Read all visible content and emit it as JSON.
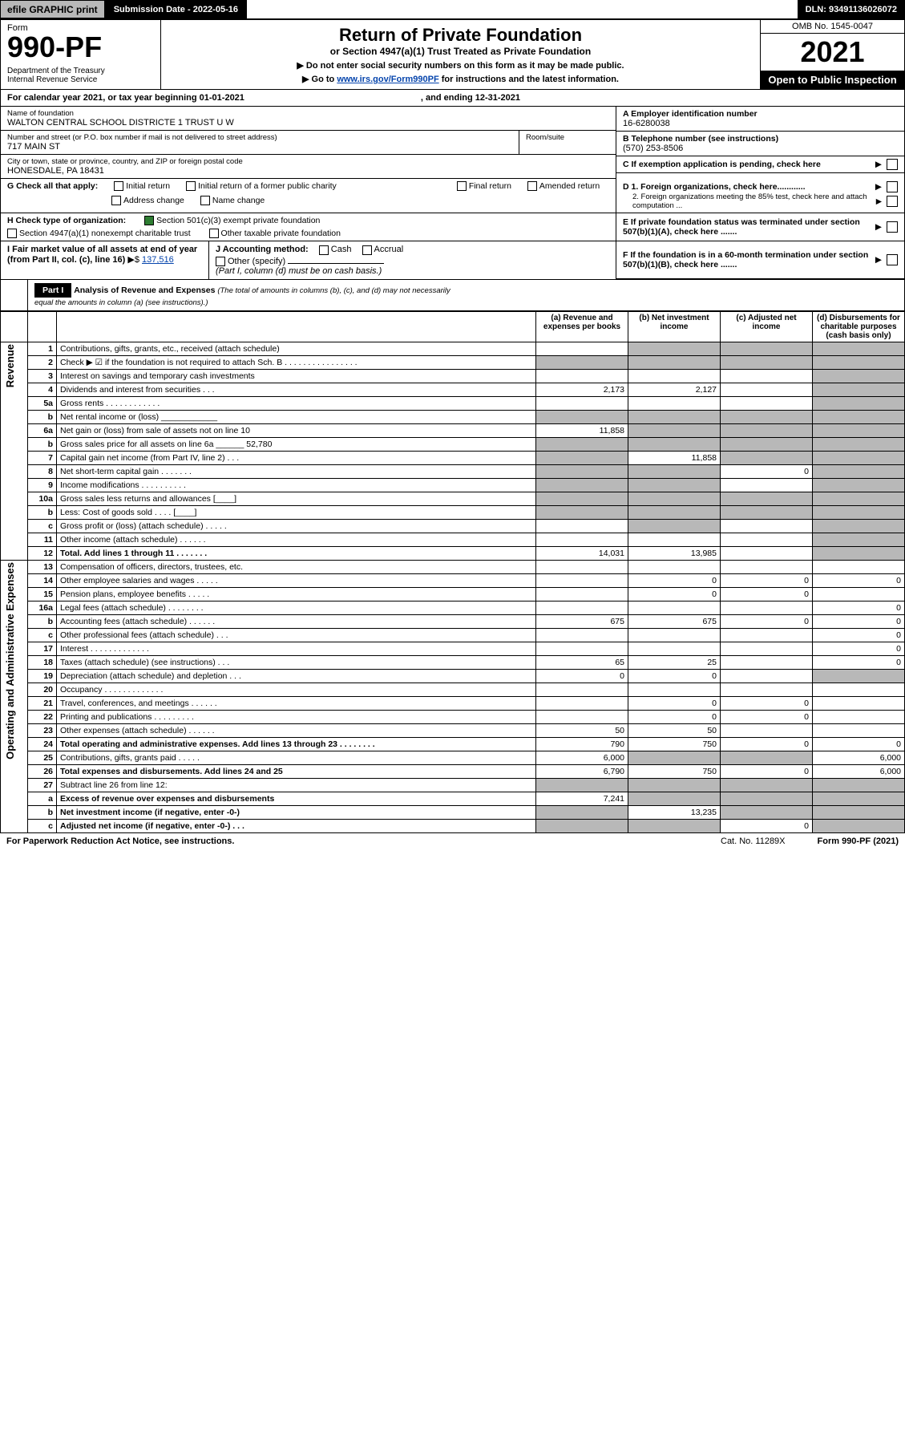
{
  "topbar": {
    "efile": "efile GRAPHIC print",
    "submission": "Submission Date - 2022-05-16",
    "dln": "DLN: 93491136026072"
  },
  "header": {
    "formword": "Form",
    "formno": "990-PF",
    "dept": "Department of the Treasury\nInternal Revenue Service",
    "title": "Return of Private Foundation",
    "sub": "or Section 4947(a)(1) Trust Treated as Private Foundation",
    "note1": "▶ Do not enter social security numbers on this form as it may be made public.",
    "note2_pre": "▶ Go to ",
    "note2_link": "www.irs.gov/Form990PF",
    "note2_post": " for instructions and the latest information.",
    "omb": "OMB No. 1545-0047",
    "year": "2021",
    "open": "Open to Public Inspection"
  },
  "calendar": {
    "text": "For calendar year 2021, or tax year beginning 01-01-2021",
    "ending": ", and ending 12-31-2021"
  },
  "info": {
    "name_label": "Name of foundation",
    "name": "WALTON CENTRAL SCHOOL DISTRICTE 1 TRUST U W",
    "addr_label": "Number and street (or P.O. box number if mail is not delivered to street address)",
    "addr": "717 MAIN ST",
    "room_label": "Room/suite",
    "city_label": "City or town, state or province, country, and ZIP or foreign postal code",
    "city": "HONESDALE, PA  18431",
    "ein_label": "A Employer identification number",
    "ein": "16-6280038",
    "tel_label": "B Telephone number (see instructions)",
    "tel": "(570) 253-8506",
    "c_label": "C If exemption application is pending, check here",
    "d1": "D 1. Foreign organizations, check here............",
    "d2": "2. Foreign organizations meeting the 85% test, check here and attach computation ...",
    "e": "E If private foundation status was terminated under section 507(b)(1)(A), check here .......",
    "f": "F If the foundation is in a 60-month termination under section 507(b)(1)(B), check here .......",
    "g_label": "G Check all that apply:",
    "g_opts": [
      "Initial return",
      "Initial return of a former public charity",
      "Final return",
      "Amended return",
      "Address change",
      "Name change"
    ],
    "h_label": "H Check type of organization:",
    "h1": "Section 501(c)(3) exempt private foundation",
    "h2": "Section 4947(a)(1) nonexempt charitable trust",
    "h3": "Other taxable private foundation",
    "i_label": "I Fair market value of all assets at end of year (from Part II, col. (c), line 16)",
    "i_val": "137,516",
    "j_label": "J Accounting method:",
    "j_cash": "Cash",
    "j_accrual": "Accrual",
    "j_other": "Other (specify)",
    "j_note": "(Part I, column (d) must be on cash basis.)"
  },
  "part1": {
    "label": "Part I",
    "title": "Analysis of Revenue and Expenses",
    "title_note": "(The total of amounts in columns (b), (c), and (d) may not necessarily equal the amounts in column (a) (see instructions).)",
    "col_a": "(a) Revenue and expenses per books",
    "col_b": "(b) Net investment income",
    "col_c": "(c) Adjusted net income",
    "col_d": "(d) Disbursements for charitable purposes (cash basis only)"
  },
  "side": {
    "revenue": "Revenue",
    "expenses": "Operating and Administrative Expenses"
  },
  "rows": [
    {
      "n": "1",
      "desc": "Contributions, gifts, grants, etc., received (attach schedule)",
      "a": "",
      "b": "_s",
      "c": "_s",
      "d": "_s"
    },
    {
      "n": "2",
      "desc": "Check ▶ ☑ if the foundation is not required to attach Sch. B   . . . . . . . . . . . . . . . .",
      "a": "_s",
      "b": "_s",
      "c": "_s",
      "d": "_s"
    },
    {
      "n": "3",
      "desc": "Interest on savings and temporary cash investments",
      "a": "",
      "b": "",
      "c": "",
      "d": "_s"
    },
    {
      "n": "4",
      "desc": "Dividends and interest from securities   . . .",
      "a": "2,173",
      "b": "2,127",
      "c": "",
      "d": "_s"
    },
    {
      "n": "5a",
      "desc": "Gross rents   . . . . . . . . . . . .",
      "a": "",
      "b": "",
      "c": "",
      "d": "_s"
    },
    {
      "n": "b",
      "desc": "Net rental income or (loss)  ____________",
      "a": "_s",
      "b": "_s",
      "c": "_s",
      "d": "_s"
    },
    {
      "n": "6a",
      "desc": "Net gain or (loss) from sale of assets not on line 10",
      "a": "11,858",
      "b": "_s",
      "c": "_s",
      "d": "_s"
    },
    {
      "n": "b",
      "desc": "Gross sales price for all assets on line 6a ______ 52,780",
      "a": "_s",
      "b": "_s",
      "c": "_s",
      "d": "_s"
    },
    {
      "n": "7",
      "desc": "Capital gain net income (from Part IV, line 2)   . . .",
      "a": "_s",
      "b": "11,858",
      "c": "_s",
      "d": "_s"
    },
    {
      "n": "8",
      "desc": "Net short-term capital gain   . . . . . . .",
      "a": "_s",
      "b": "_s",
      "c": "0",
      "d": "_s"
    },
    {
      "n": "9",
      "desc": "Income modifications . . . . . . . . . .",
      "a": "_s",
      "b": "_s",
      "c": "",
      "d": "_s"
    },
    {
      "n": "10a",
      "desc": "Gross sales less returns and allowances  [____]",
      "a": "_s",
      "b": "_s",
      "c": "_s",
      "d": "_s"
    },
    {
      "n": "b",
      "desc": "Less: Cost of goods sold   . . . .  [____]",
      "a": "_s",
      "b": "_s",
      "c": "_s",
      "d": "_s"
    },
    {
      "n": "c",
      "desc": "Gross profit or (loss) (attach schedule)   . . . . .",
      "a": "",
      "b": "_s",
      "c": "",
      "d": "_s"
    },
    {
      "n": "11",
      "desc": "Other income (attach schedule)   . . . . . .",
      "a": "",
      "b": "",
      "c": "",
      "d": "_s"
    },
    {
      "n": "12",
      "desc": "Total. Add lines 1 through 11   . . . . . . .",
      "a": "14,031",
      "b": "13,985",
      "c": "",
      "d": "_s",
      "bold": true
    },
    {
      "n": "13",
      "desc": "Compensation of officers, directors, trustees, etc.",
      "a": "",
      "b": "",
      "c": "",
      "d": ""
    },
    {
      "n": "14",
      "desc": "Other employee salaries and wages   . . . . .",
      "a": "",
      "b": "0",
      "c": "0",
      "d": "0"
    },
    {
      "n": "15",
      "desc": "Pension plans, employee benefits   . . . . .",
      "a": "",
      "b": "0",
      "c": "0",
      "d": ""
    },
    {
      "n": "16a",
      "desc": "Legal fees (attach schedule) . . . . . . . .",
      "a": "",
      "b": "",
      "c": "",
      "d": "0"
    },
    {
      "n": "b",
      "desc": "Accounting fees (attach schedule) . . . . . .",
      "a": "675",
      "b": "675",
      "c": "0",
      "d": "0"
    },
    {
      "n": "c",
      "desc": "Other professional fees (attach schedule)   . . .",
      "a": "",
      "b": "",
      "c": "",
      "d": "0"
    },
    {
      "n": "17",
      "desc": "Interest . . . . . . . . . . . . .",
      "a": "",
      "b": "",
      "c": "",
      "d": "0"
    },
    {
      "n": "18",
      "desc": "Taxes (attach schedule) (see instructions)   . . .",
      "a": "65",
      "b": "25",
      "c": "",
      "d": "0"
    },
    {
      "n": "19",
      "desc": "Depreciation (attach schedule) and depletion   . . .",
      "a": "0",
      "b": "0",
      "c": "",
      "d": "_s"
    },
    {
      "n": "20",
      "desc": "Occupancy . . . . . . . . . . . . .",
      "a": "",
      "b": "",
      "c": "",
      "d": ""
    },
    {
      "n": "21",
      "desc": "Travel, conferences, and meetings . . . . . .",
      "a": "",
      "b": "0",
      "c": "0",
      "d": ""
    },
    {
      "n": "22",
      "desc": "Printing and publications . . . . . . . . .",
      "a": "",
      "b": "0",
      "c": "0",
      "d": ""
    },
    {
      "n": "23",
      "desc": "Other expenses (attach schedule)  . . . . . .",
      "a": "50",
      "b": "50",
      "c": "",
      "d": ""
    },
    {
      "n": "24",
      "desc": "Total operating and administrative expenses. Add lines 13 through 23   . . . . . . . .",
      "a": "790",
      "b": "750",
      "c": "0",
      "d": "0",
      "bold": true
    },
    {
      "n": "25",
      "desc": "Contributions, gifts, grants paid   . . . . .",
      "a": "6,000",
      "b": "_s",
      "c": "_s",
      "d": "6,000"
    },
    {
      "n": "26",
      "desc": "Total expenses and disbursements. Add lines 24 and 25",
      "a": "6,790",
      "b": "750",
      "c": "0",
      "d": "6,000",
      "bold": true
    },
    {
      "n": "27",
      "desc": "Subtract line 26 from line 12:",
      "a": "_s",
      "b": "_s",
      "c": "_s",
      "d": "_s"
    },
    {
      "n": "a",
      "desc": "Excess of revenue over expenses and disbursements",
      "a": "7,241",
      "b": "_s",
      "c": "_s",
      "d": "_s",
      "bold": true
    },
    {
      "n": "b",
      "desc": "Net investment income (if negative, enter -0-)",
      "a": "_s",
      "b": "13,235",
      "c": "_s",
      "d": "_s",
      "bold": true
    },
    {
      "n": "c",
      "desc": "Adjusted net income (if negative, enter -0-)  . . .",
      "a": "_s",
      "b": "_s",
      "c": "0",
      "d": "_s",
      "bold": true
    }
  ],
  "footer": {
    "paperwork": "For Paperwork Reduction Act Notice, see instructions.",
    "cat": "Cat. No. 11289X",
    "form": "Form 990-PF (2021)"
  },
  "colors": {
    "shade": "#b8b8b8",
    "black": "#000000",
    "link": "#0645ad",
    "check_green": "#2e7d32"
  }
}
